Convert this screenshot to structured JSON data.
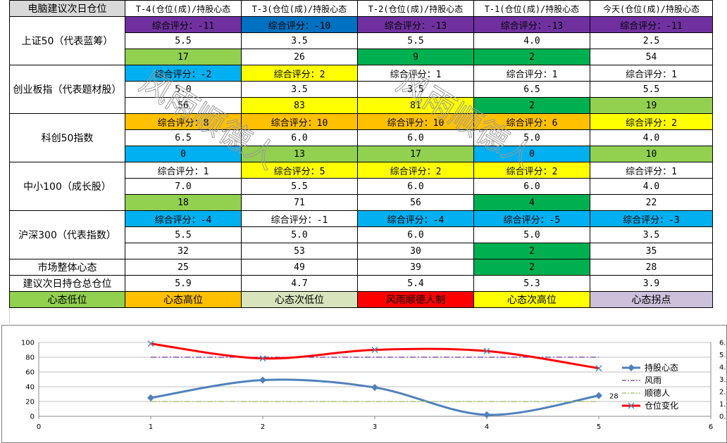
{
  "table": {
    "header": [
      "电脑建议次日仓位",
      "T-4(仓位(成)/持股心态",
      "T-3(仓位(成)/持股心态",
      "T-2(仓位(成)/持股心态",
      "T-1(仓位(成)/持股心态",
      "今天(仓位(成)/持股心态"
    ],
    "indices": [
      {
        "name": "上证50（代表蓝筹）",
        "score": [
          "综合评分：-11",
          "综合评分：-10",
          "综合评分：-13",
          "综合评分：-13",
          "综合评分：-11"
        ],
        "score_bg": [
          "#7030a0",
          "#0070c0",
          "#7030a0",
          "#7030a0",
          "#7030a0"
        ],
        "position": [
          "5.5",
          "3.5",
          "5.5",
          "4.0",
          "2.5"
        ],
        "mind": [
          "17",
          "26",
          "9",
          "2",
          "54"
        ],
        "mind_bg": [
          "#92d050",
          "#ffffff",
          "#00b050",
          "#00b050",
          "#ffffff"
        ]
      },
      {
        "name": "创业板指（代表题材股）",
        "score": [
          "综合评分：-2",
          "综合评分：2",
          "综合评分：1",
          "综合评分：1",
          "综合评分：1"
        ],
        "score_bg": [
          "#00b0f0",
          "#ffff00",
          "#ffffff",
          "#ffffff",
          "#ffffff"
        ],
        "position": [
          "5.0",
          "3.5",
          "3.5",
          "6.5",
          "5.5"
        ],
        "mind": [
          "56",
          "83",
          "81",
          "2",
          "19"
        ],
        "mind_bg": [
          "#ffffff",
          "#ffff00",
          "#ffff00",
          "#00b050",
          "#92d050"
        ]
      },
      {
        "name": "科创50指数",
        "score": [
          "综合评分：8",
          "综合评分：10",
          "综合评分：10",
          "综合评分：6",
          "综合评分：2"
        ],
        "score_bg": [
          "#ffc000",
          "#ffc000",
          "#ffc000",
          "#ffc000",
          "#ffff00"
        ],
        "position": [
          "6.5",
          "6.0",
          "6.0",
          "5.0",
          "4.0"
        ],
        "mind": [
          "0",
          "13",
          "17",
          "0",
          "10"
        ],
        "mind_bg": [
          "#00b0f0",
          "#92d050",
          "#92d050",
          "#00b0f0",
          "#92d050"
        ]
      },
      {
        "name": "中小100（成长股）",
        "score": [
          "综合评分：1",
          "综合评分：5",
          "综合评分：2",
          "综合评分：2",
          "综合评分：1"
        ],
        "score_bg": [
          "#ffffff",
          "#ffff00",
          "#ffff00",
          "#ffff00",
          "#ffffff"
        ],
        "position": [
          "7.0",
          "5.5",
          "6.0",
          "6.0",
          "4.0"
        ],
        "mind": [
          "18",
          "71",
          "56",
          "4",
          "22"
        ],
        "mind_bg": [
          "#92d050",
          "#ffffff",
          "#ffffff",
          "#00b050",
          "#ffffff"
        ]
      },
      {
        "name": "沪深300（代表指数）",
        "score": [
          "综合评分：-4",
          "综合评分：-1",
          "综合评分：-4",
          "综合评分：-5",
          "综合评分：-3"
        ],
        "score_bg": [
          "#00b0f0",
          "#ffffff",
          "#00b0f0",
          "#00b0f0",
          "#00b0f0"
        ],
        "position": [
          "5.5",
          "5.0",
          "6.0",
          "5.0",
          "3.5"
        ],
        "mind": [
          "32",
          "53",
          "30",
          "2",
          "35"
        ],
        "mind_bg": [
          "#ffffff",
          "#ffffff",
          "#ffffff",
          "#00b050",
          "#ffffff"
        ]
      }
    ],
    "market": {
      "label": "市场整体心态",
      "values": [
        "25",
        "49",
        "39",
        "2",
        "28"
      ],
      "bg": [
        "#ffffff",
        "#ffffff",
        "#ffffff",
        "#00b050",
        "#ffffff"
      ]
    },
    "suggest": {
      "label": "建议次日持仓总仓位",
      "values": [
        "5.9",
        "4.7",
        "5.4",
        "5.3",
        "3.9"
      ]
    },
    "legend_row": [
      {
        "text": "心态低位",
        "bg": "#92d050"
      },
      {
        "text": "心态高位",
        "bg": "#ffc000"
      },
      {
        "text": "心态次低位",
        "bg": "#d8e4bc"
      },
      {
        "text": "风雨顺德人制",
        "bg": "#ff0000"
      },
      {
        "text": "心态次高位",
        "bg": "#ffff00"
      },
      {
        "text": "心态拐点",
        "bg": "#ccc0da"
      }
    ]
  },
  "watermark": "风雨顺德人",
  "chart_data": {
    "type": "line",
    "x": [
      1,
      2,
      3,
      4,
      5
    ],
    "xlim": [
      0,
      6
    ],
    "xticks": [
      "0",
      "1",
      "2",
      "3",
      "4",
      "5",
      "6"
    ],
    "ylim_left": [
      0,
      100
    ],
    "yticks_left": [
      "0",
      "20",
      "40",
      "60",
      "80",
      "100"
    ],
    "ylim_right": [
      0,
      6
    ],
    "yticks_right": [
      "0.0",
      "1.0",
      "2.0",
      "3.0",
      "4.0",
      "5.0",
      "6.0"
    ],
    "series": [
      {
        "name": "持股心态",
        "axis": "left",
        "values": [
          25,
          49,
          39,
          2,
          28
        ],
        "color": "#4f81bd",
        "marker": "diamond"
      },
      {
        "name": "风雨",
        "axis": "left",
        "values": [
          80,
          80,
          80,
          80,
          80
        ],
        "color": "#7030a0",
        "dash": "dashdot"
      },
      {
        "name": "顺德人",
        "axis": "left",
        "values": [
          20,
          20,
          20,
          20,
          20
        ],
        "color": "#9bbb59",
        "dash": "dashdot"
      },
      {
        "name": "仓位变化",
        "axis": "right",
        "values": [
          5.9,
          4.7,
          5.4,
          5.3,
          3.9
        ],
        "color": "#ff0000",
        "marker": "x"
      }
    ],
    "data_labels": [
      {
        "series": "持股心态",
        "index": 4,
        "text": "28"
      }
    ],
    "grid": true,
    "legend": "right"
  }
}
